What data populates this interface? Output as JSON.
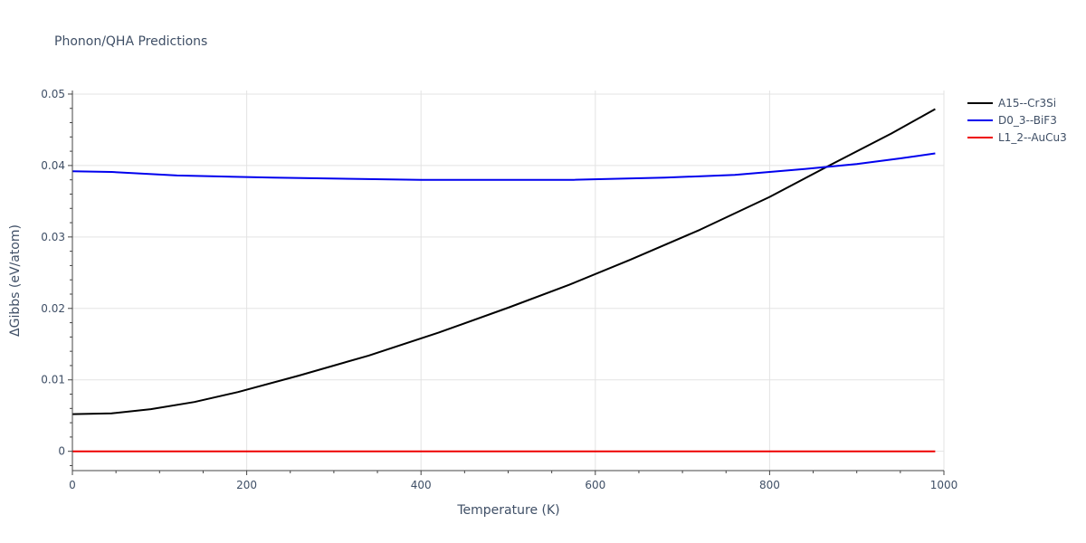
{
  "chart_data": {
    "type": "line",
    "title": "Phonon/QHA Predictions",
    "xlabel": "Temperature (K)",
    "ylabel": "ΔGibbs (eV/atom)",
    "xlim": [
      0,
      1000
    ],
    "ylim": [
      -0.0027,
      0.0505
    ],
    "x_ticks": [
      0,
      200,
      400,
      600,
      800,
      1000
    ],
    "y_ticks": [
      0,
      0.01,
      0.02,
      0.03,
      0.04,
      0.05
    ],
    "x_tick_labels": [
      "0",
      "200",
      "400",
      "600",
      "800",
      "1000"
    ],
    "y_tick_labels": [
      "0",
      "0.01",
      "0.02",
      "0.03",
      "0.04",
      "0.05"
    ],
    "grid": true,
    "legend_position": "right",
    "series": [
      {
        "name": "A15--Cr3Si",
        "color": "#000000",
        "x": [
          0,
          45,
          90,
          140,
          190,
          260,
          340,
          420,
          500,
          570,
          640,
          720,
          800,
          870,
          940,
          990
        ],
        "y": [
          0.0052,
          0.0053,
          0.0059,
          0.0069,
          0.0083,
          0.0106,
          0.0134,
          0.0166,
          0.0201,
          0.0233,
          0.0268,
          0.031,
          0.0356,
          0.0401,
          0.0445,
          0.0479
        ]
      },
      {
        "name": "D0_3--BiF3",
        "color": "#0000ee",
        "x": [
          0,
          45,
          120,
          230,
          400,
          520,
          575,
          680,
          760,
          840,
          900,
          950,
          990
        ],
        "y": [
          0.0392,
          0.0391,
          0.0386,
          0.0383,
          0.038,
          0.038,
          0.038,
          0.0383,
          0.0387,
          0.0395,
          0.0402,
          0.041,
          0.0417
        ]
      },
      {
        "name": "L1_2--AuCu3",
        "color": "#ee0000",
        "x": [
          0,
          990
        ],
        "y": [
          0,
          0
        ]
      }
    ]
  }
}
